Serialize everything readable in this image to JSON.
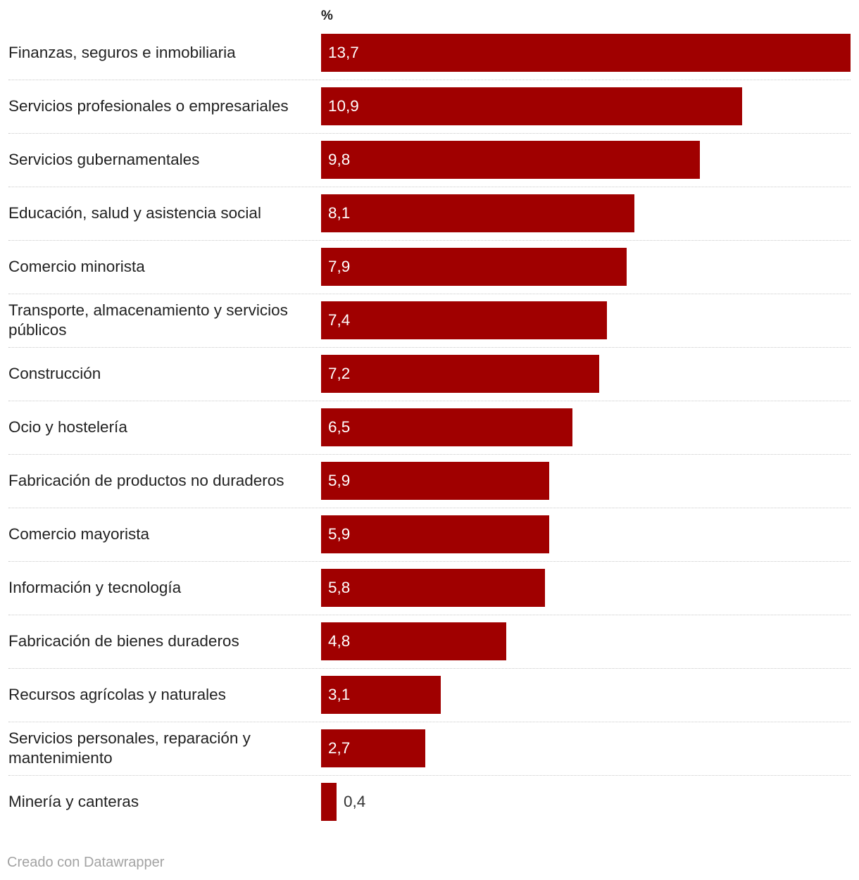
{
  "chart_data": {
    "type": "bar",
    "orientation": "horizontal",
    "unit_label": "%",
    "categories": [
      "Finanzas, seguros e inmobiliaria",
      "Servicios profesionales o empresariales",
      "Servicios gubernamentales",
      "Educación, salud y asistencia social",
      "Comercio minorista",
      "Transporte, almacenamiento y servicios públicos",
      "Construcción",
      "Ocio y hostelería",
      "Fabricación de productos no duraderos",
      "Comercio mayorista",
      "Información y tecnología",
      "Fabricación de bienes duraderos",
      "Recursos agrícolas y naturales",
      "Servicios personales, reparación y mantenimiento",
      "Minería y canteras"
    ],
    "values": [
      13.7,
      10.9,
      9.8,
      8.1,
      7.9,
      7.4,
      7.2,
      6.5,
      5.9,
      5.9,
      5.8,
      4.8,
      3.1,
      2.7,
      0.4
    ],
    "value_labels": [
      "13,7",
      "10,9",
      "9,8",
      "8,1",
      "7,9",
      "7,4",
      "7,2",
      "6,5",
      "5,9",
      "5,9",
      "5,8",
      "4,8",
      "3,1",
      "2,7",
      "0,4"
    ],
    "xlim": [
      0,
      13.7
    ],
    "bar_color": "#a00000",
    "label_inside_color": "#ffffff",
    "label_outside_color": "#333333",
    "grid": false
  },
  "footer": {
    "credit": "Creado con Datawrapper"
  }
}
